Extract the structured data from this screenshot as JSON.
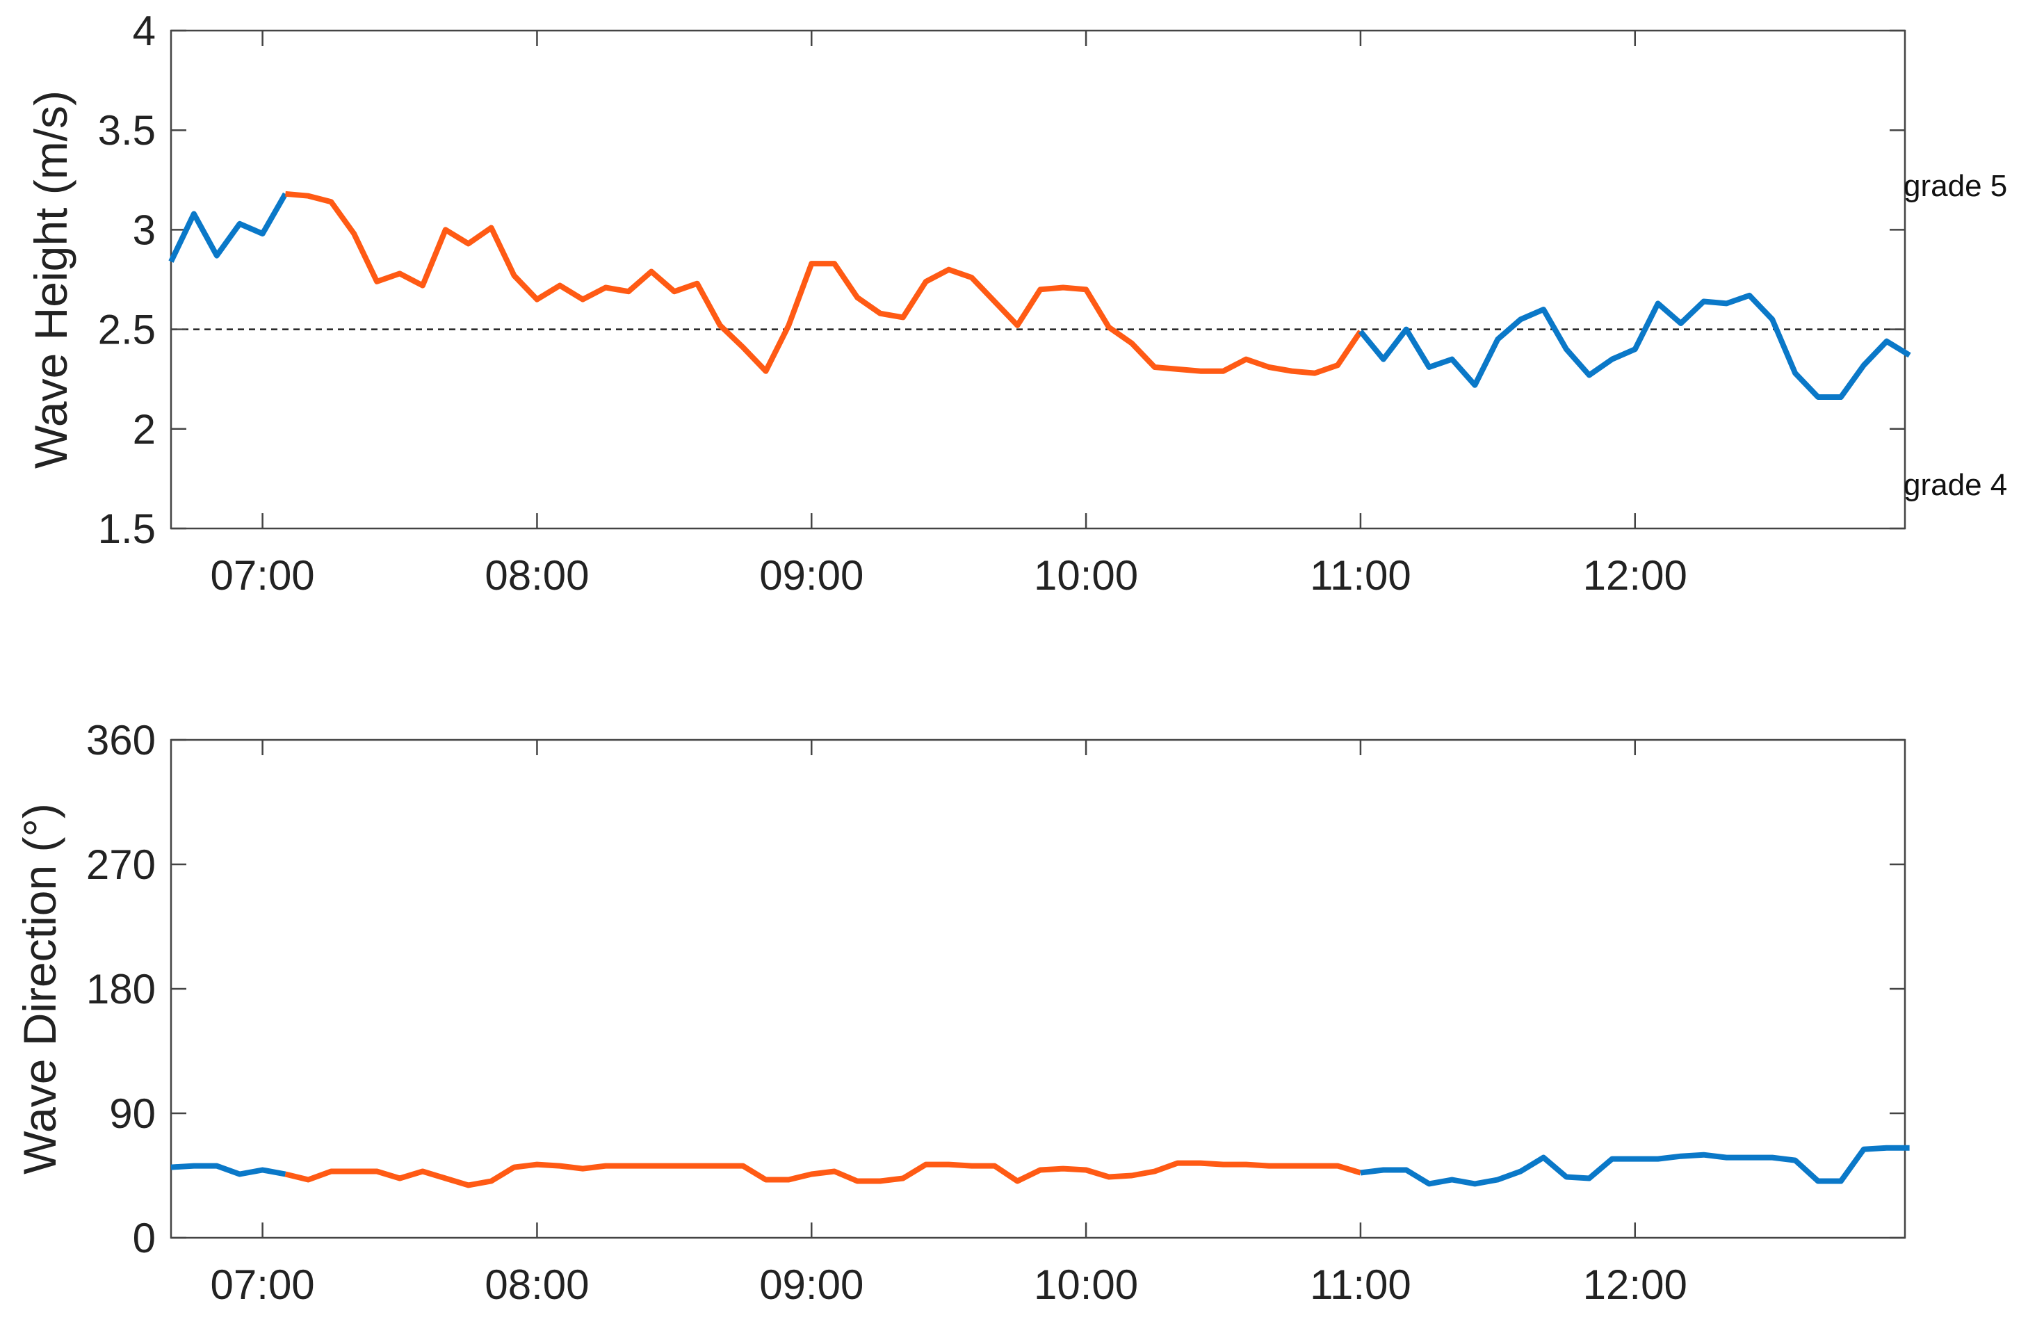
{
  "colors": {
    "highlight": "#FF5A14",
    "base": "#0A78C8",
    "axis": "#444444",
    "threshold": "#222222"
  },
  "chart_data": [
    {
      "type": "line",
      "ylabel": "Wave Height (m/s)",
      "xlabel": "",
      "ylim": [
        1.5,
        4
      ],
      "yticks": [
        "1.5",
        "2",
        "2.5",
        "3",
        "3.5",
        "4"
      ],
      "xlim": [
        "06:40",
        "12:59"
      ],
      "xticks": [
        "07:00",
        "08:00",
        "09:00",
        "10:00",
        "11:00",
        "12:00"
      ],
      "threshold": 2.5,
      "annotations": [
        "grade 5",
        "grade 4"
      ],
      "grid": false,
      "x_start": "06:40",
      "step_minutes": 5,
      "values": [
        2.84,
        3.08,
        2.87,
        3.03,
        2.98,
        3.18,
        3.17,
        3.14,
        2.98,
        2.74,
        2.78,
        2.72,
        3.0,
        2.93,
        3.01,
        2.77,
        2.65,
        2.72,
        2.65,
        2.71,
        2.69,
        2.79,
        2.69,
        2.73,
        2.52,
        2.41,
        2.29,
        2.52,
        2.83,
        2.83,
        2.66,
        2.58,
        2.56,
        2.74,
        2.8,
        2.76,
        2.64,
        2.52,
        2.7,
        2.71,
        2.7,
        2.51,
        2.43,
        2.31,
        2.3,
        2.29,
        2.29,
        2.35,
        2.31,
        2.29,
        2.28,
        2.32,
        2.49,
        2.35,
        2.5,
        2.31,
        2.35,
        2.22,
        2.45,
        2.55,
        2.6,
        2.4,
        2.27,
        2.35,
        2.4,
        2.63,
        2.53,
        2.64,
        2.63,
        2.67,
        2.55,
        2.28,
        2.16,
        2.16,
        2.32,
        2.44,
        2.37
      ],
      "segments": [
        {
          "name": "",
          "color": "#0A78C8",
          "from": 0,
          "to": 5
        },
        {
          "name": "",
          "color": "#FF5A14",
          "from": 5,
          "to": 52
        },
        {
          "name": "",
          "color": "#0A78C8",
          "from": 52,
          "to": 76
        }
      ]
    },
    {
      "type": "line",
      "ylabel": "Wave Direction (°)",
      "xlabel": "",
      "ylim": [
        0,
        360
      ],
      "yticks": [
        "0",
        "90",
        "180",
        "270",
        "360"
      ],
      "xlim": [
        "06:40",
        "12:59"
      ],
      "xticks": [
        "07:00",
        "08:00",
        "09:00",
        "10:00",
        "11:00",
        "12:00"
      ],
      "grid": false,
      "x_start": "06:40",
      "step_minutes": 5,
      "values": [
        51,
        52,
        52,
        46,
        49,
        46,
        42,
        48,
        48,
        48,
        43,
        48,
        43,
        38,
        41,
        51,
        53,
        52,
        50,
        52,
        52,
        52,
        52,
        52,
        52,
        52,
        42,
        42,
        46,
        48,
        41,
        41,
        43,
        53,
        53,
        52,
        52,
        41,
        49,
        50,
        49,
        44,
        45,
        48,
        54,
        54,
        53,
        53,
        52,
        52,
        52,
        52,
        47,
        49,
        49,
        39,
        42,
        39,
        42,
        48,
        58,
        44,
        43,
        57,
        57,
        57,
        59,
        60,
        58,
        58,
        58,
        56,
        41,
        41,
        64,
        65,
        65
      ],
      "segments": [
        {
          "name": "",
          "color": "#0A78C8",
          "from": 0,
          "to": 5
        },
        {
          "name": "",
          "color": "#FF5A14",
          "from": 5,
          "to": 52
        },
        {
          "name": "",
          "color": "#0A78C8",
          "from": 52,
          "to": 76
        }
      ]
    }
  ]
}
